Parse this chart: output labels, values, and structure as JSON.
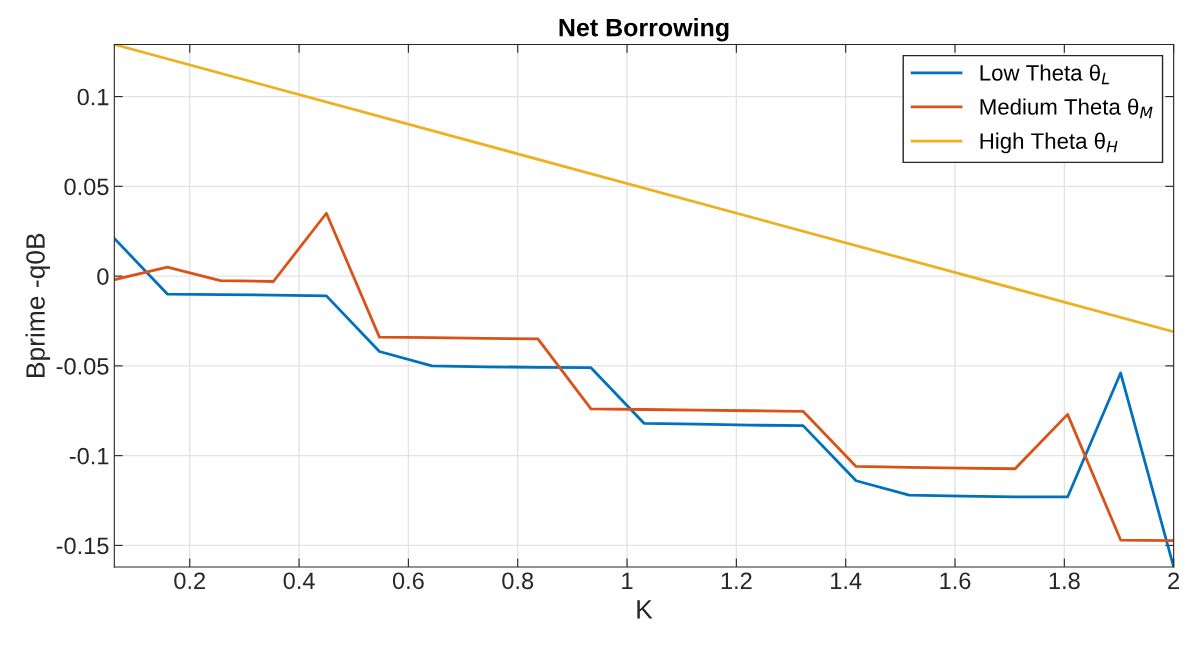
{
  "chart_data": {
    "type": "line",
    "title": "Net Borrowing",
    "xlabel": "K",
    "ylabel": "Bprime -q0B",
    "x": [
      0.062,
      0.159,
      0.256,
      0.353,
      0.45,
      0.547,
      0.643,
      0.74,
      0.837,
      0.934,
      1.031,
      1.128,
      1.225,
      1.322,
      1.419,
      1.516,
      1.613,
      1.71,
      1.806,
      1.903,
      2.0
    ],
    "series": [
      {
        "name": "Low Theta θ$_{L}$",
        "color": "#0072bd",
        "values": [
          0.021,
          -0.01,
          -0.0103,
          -0.0106,
          -0.011,
          -0.042,
          -0.05,
          -0.0505,
          -0.0508,
          -0.051,
          -0.082,
          -0.0825,
          -0.083,
          -0.0833,
          -0.114,
          -0.122,
          -0.1225,
          -0.123,
          -0.123,
          -0.054,
          -0.162
        ]
      },
      {
        "name": "Medium Theta θ$_{M}$",
        "color": "#d95319",
        "values": [
          -0.002,
          0.005,
          -0.0025,
          -0.003,
          0.035,
          -0.034,
          -0.0343,
          -0.0347,
          -0.035,
          -0.074,
          -0.0743,
          -0.0746,
          -0.075,
          -0.0753,
          -0.106,
          -0.1065,
          -0.107,
          -0.1073,
          -0.077,
          -0.147,
          -0.1473
        ]
      },
      {
        "name": "High Theta θ$_{H}$",
        "color": "#edb120",
        "x": [
          0.062,
          2.0
        ],
        "values": [
          0.129,
          -0.031
        ]
      }
    ],
    "xlim": [
      0.062,
      2
    ],
    "ylim": [
      -0.162,
      0.129
    ],
    "xticks": [
      0.2,
      0.4,
      0.6,
      0.8,
      1,
      1.2,
      1.4,
      1.6,
      1.8,
      2
    ],
    "yticks": [
      -0.15,
      -0.1,
      -0.05,
      0,
      0.05,
      0.1
    ],
    "grid": true,
    "legend": "top right",
    "marker": "none",
    "line_style": "solid"
  }
}
